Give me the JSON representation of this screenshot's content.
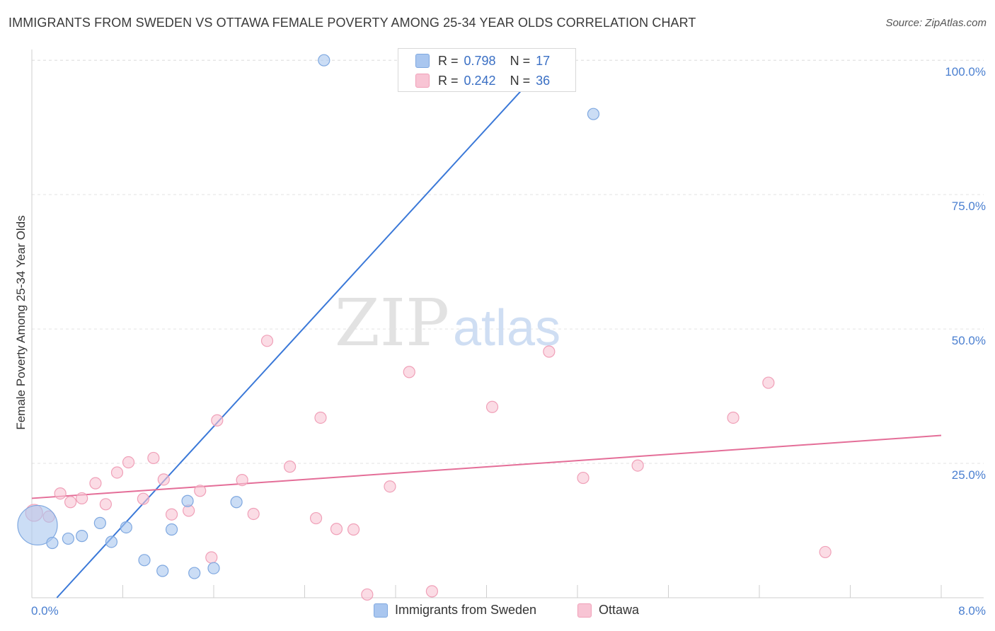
{
  "header": {
    "title": "IMMIGRANTS FROM SWEDEN VS OTTAWA FEMALE POVERTY AMONG 25-34 YEAR OLDS CORRELATION CHART",
    "source": "Source: ZipAtlas.com"
  },
  "watermark": {
    "left": "ZIP",
    "right": "atlas"
  },
  "stats": [
    {
      "r_label": "R = ",
      "r_value": "0.798",
      "n_label": "N = ",
      "n_value": "17",
      "color": "#a9c6ef",
      "border": "#7fa8e0"
    },
    {
      "r_label": "R = ",
      "r_value": "0.242",
      "n_label": "N = ",
      "n_value": "36",
      "color": "#f8c4d4",
      "border": "#f0a0b8"
    }
  ],
  "legend": [
    {
      "label": "Immigrants from Sweden",
      "color": "#a9c6ef",
      "border": "#7fa8e0"
    },
    {
      "label": "Ottawa",
      "color": "#f8c4d4",
      "border": "#f0a0b8"
    }
  ],
  "chart_data": {
    "type": "scatter",
    "title": "IMMIGRANTS FROM SWEDEN VS OTTAWA FEMALE POVERTY AMONG 25-34 YEAR OLDS CORRELATION CHART",
    "xlabel": "",
    "ylabel": "Female Poverty Among 25-34 Year Olds",
    "xlim": [
      0,
      8
    ],
    "ylim": [
      0,
      102
    ],
    "x_tick_labels": [
      "0.0%",
      "8.0%"
    ],
    "y_tick_labels": [
      "25.0%",
      "50.0%",
      "75.0%",
      "100.0%"
    ],
    "y_ticks": [
      25,
      50,
      75,
      100
    ],
    "grid": true,
    "colors": {
      "blue": "#3a78d8",
      "pink": "#e46e98",
      "tick_text": "#4a7fd0"
    },
    "series": [
      {
        "name": "Immigrants from Sweden",
        "color": "#a9c6ef",
        "stroke": "#7fa8e0",
        "line_color": "#3a78d8",
        "trend": [
          [
            0.22,
            0
          ],
          [
            4.55,
            100
          ]
        ],
        "points": [
          [
            0.05,
            13.5
          ],
          [
            0.18,
            10.2
          ],
          [
            0.32,
            11.0
          ],
          [
            0.44,
            11.5
          ],
          [
            0.6,
            13.9
          ],
          [
            0.7,
            10.4
          ],
          [
            0.83,
            13.1
          ],
          [
            0.99,
            7.0
          ],
          [
            1.15,
            5.0
          ],
          [
            1.23,
            12.7
          ],
          [
            1.37,
            18.0
          ],
          [
            1.43,
            4.6
          ],
          [
            1.6,
            5.5
          ],
          [
            1.8,
            17.8
          ],
          [
            2.57,
            100.0
          ],
          [
            3.44,
            100.0
          ],
          [
            4.94,
            90.0
          ]
        ],
        "sizes": [
          30,
          10,
          10,
          10,
          10,
          10,
          10,
          10,
          10,
          10,
          10,
          10,
          10,
          10,
          10,
          10,
          10
        ]
      },
      {
        "name": "Ottawa",
        "color": "#f8c4d4",
        "stroke": "#f0a0b8",
        "line_color": "#e46e98",
        "trend": [
          [
            0,
            18.5
          ],
          [
            8.0,
            30.2
          ]
        ],
        "points": [
          [
            0.02,
            15.8
          ],
          [
            0.15,
            15.1
          ],
          [
            0.25,
            19.4
          ],
          [
            0.34,
            17.8
          ],
          [
            0.44,
            18.5
          ],
          [
            0.56,
            21.3
          ],
          [
            0.65,
            17.4
          ],
          [
            0.75,
            23.3
          ],
          [
            0.85,
            25.2
          ],
          [
            0.98,
            18.4
          ],
          [
            1.07,
            26.0
          ],
          [
            1.16,
            22.0
          ],
          [
            1.23,
            15.5
          ],
          [
            1.38,
            16.2
          ],
          [
            1.48,
            19.9
          ],
          [
            1.58,
            7.5
          ],
          [
            1.63,
            33.0
          ],
          [
            1.85,
            21.9
          ],
          [
            1.95,
            15.6
          ],
          [
            2.07,
            47.8
          ],
          [
            2.27,
            24.4
          ],
          [
            2.5,
            14.8
          ],
          [
            2.54,
            33.5
          ],
          [
            2.68,
            12.8
          ],
          [
            2.83,
            12.7
          ],
          [
            2.95,
            0.6
          ],
          [
            3.15,
            20.7
          ],
          [
            3.32,
            42.0
          ],
          [
            3.52,
            1.2
          ],
          [
            4.05,
            35.5
          ],
          [
            4.55,
            45.8
          ],
          [
            4.85,
            22.3
          ],
          [
            5.33,
            24.6
          ],
          [
            6.17,
            33.5
          ],
          [
            6.48,
            40.0
          ],
          [
            6.98,
            8.5
          ]
        ],
        "sizes": [
          14,
          10,
          10,
          10,
          10,
          10,
          10,
          10,
          10,
          10,
          10,
          10,
          10,
          10,
          10,
          10,
          10,
          10,
          10,
          10,
          10,
          10,
          10,
          10,
          10,
          10,
          10,
          10,
          10,
          10,
          10,
          10,
          10,
          10,
          10,
          10
        ]
      }
    ]
  }
}
